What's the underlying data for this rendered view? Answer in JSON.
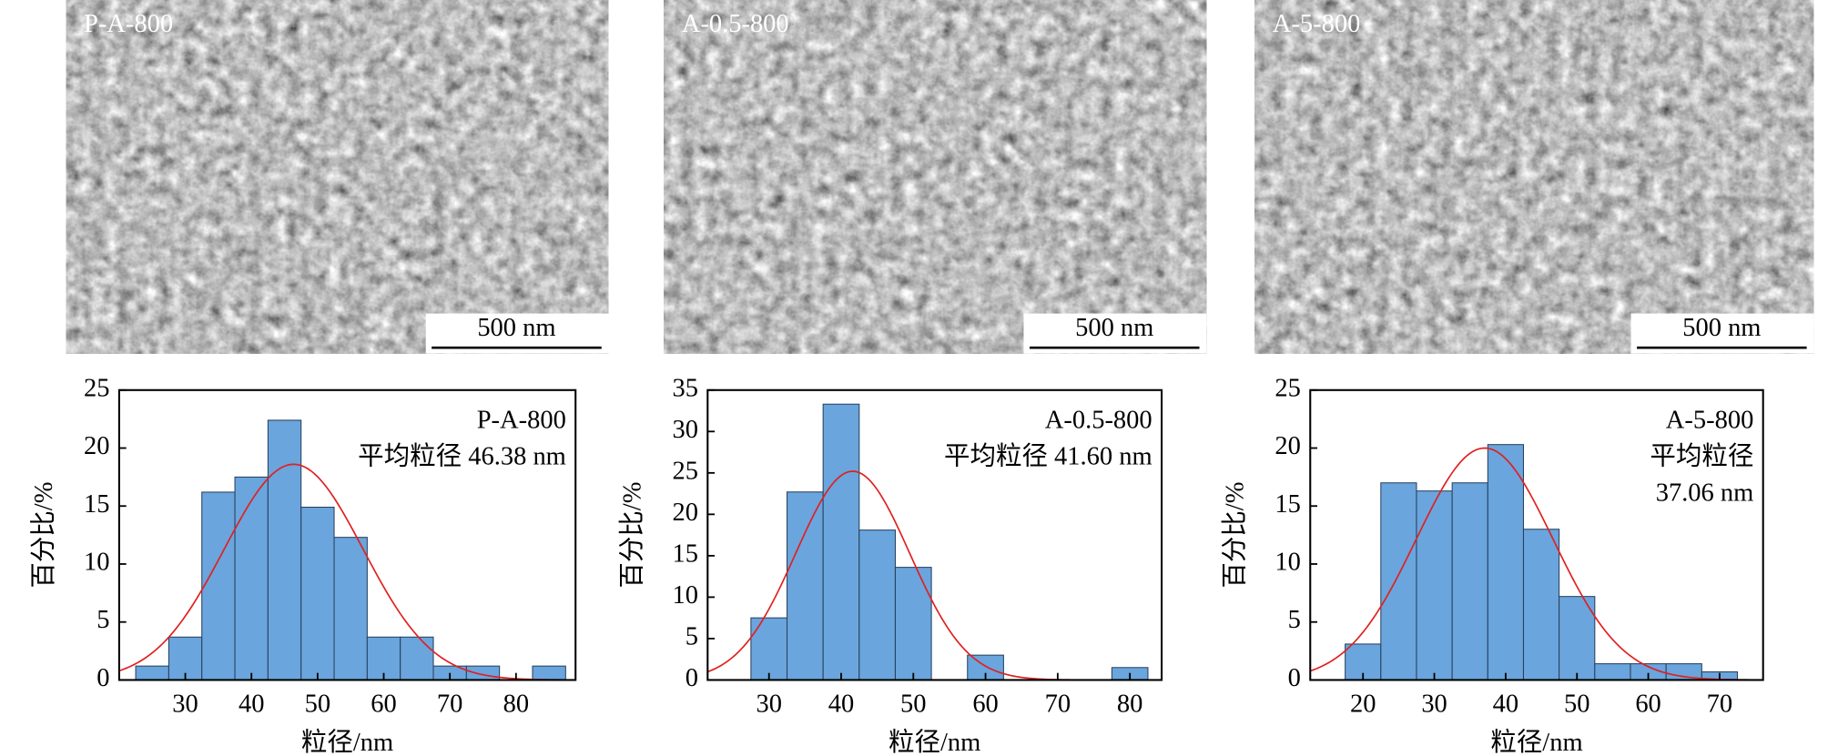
{
  "images": [
    {
      "label": "P-A-800",
      "scale_bar": "500 nm"
    },
    {
      "label": "A-0.5-800",
      "scale_bar": "500 nm"
    },
    {
      "label": "A-5-800",
      "scale_bar": "500 nm"
    }
  ],
  "chart_data": [
    {
      "type": "histogram",
      "annotation": [
        "P-A-800",
        "平均粒径 46.38 nm"
      ],
      "x_label": "粒径/nm",
      "y_label": "百分比/%",
      "color": "#6aa5dd",
      "fit_color": "#e02020",
      "bins": [
        22.5,
        27.5,
        32.5,
        37.5,
        42.5,
        47.5,
        52.5,
        57.5,
        62.5,
        67.5,
        72.5,
        77.5,
        82.5,
        87.5
      ],
      "values": [
        1.2,
        3.7,
        16.2,
        17.5,
        22.4,
        14.9,
        12.3,
        3.7,
        3.7,
        1.2,
        1.2,
        0,
        1.2
      ],
      "fit": {
        "mean": 46.38,
        "peak": 18.6,
        "sd": 10.5
      },
      "xlim": [
        20,
        89
      ],
      "ylim": [
        0,
        25
      ],
      "xticks": [
        30,
        40,
        50,
        60,
        70,
        80
      ],
      "yticks": [
        0,
        5,
        10,
        15,
        20,
        25
      ]
    },
    {
      "type": "histogram",
      "annotation": [
        "A-0.5-800",
        "平均粒径 41.60 nm"
      ],
      "x_label": "粒径/nm",
      "y_label": "百分比/%",
      "color": "#6aa5dd",
      "fit_color": "#e02020",
      "bins": [
        27.5,
        32.5,
        37.5,
        42.5,
        47.5,
        52.5,
        57.5,
        62.5,
        67.5,
        72.5,
        77.5,
        82.5
      ],
      "values": [
        7.5,
        22.7,
        33.3,
        18.1,
        13.6,
        0,
        3.0,
        0,
        0,
        0,
        1.5
      ],
      "fit": {
        "mean": 41.6,
        "peak": 25.2,
        "sd": 7.9
      },
      "xlim": [
        21.5,
        84.4
      ],
      "ylim": [
        0,
        35
      ],
      "xticks": [
        30,
        40,
        50,
        60,
        70,
        80
      ],
      "yticks": [
        0,
        5,
        10,
        15,
        20,
        25,
        30,
        35
      ]
    },
    {
      "type": "histogram",
      "annotation": [
        "A-5-800",
        "平均粒径",
        "37.06 nm"
      ],
      "x_label": "粒径/nm",
      "y_label": "百分比/%",
      "color": "#6aa5dd",
      "fit_color": "#e02020",
      "bins": [
        17.5,
        22.5,
        27.5,
        32.5,
        37.5,
        42.5,
        47.5,
        52.5,
        57.5,
        62.5,
        67.5,
        72.5
      ],
      "values": [
        3.1,
        17.0,
        16.3,
        17.0,
        20.3,
        13.0,
        7.2,
        1.4,
        1.4,
        1.4,
        0.7
      ],
      "fit": {
        "mean": 37.06,
        "peak": 20.0,
        "sd": 9.6
      },
      "xlim": [
        12.6,
        76.1
      ],
      "ylim": [
        0,
        25
      ],
      "xticks": [
        20,
        30,
        40,
        50,
        60,
        70
      ],
      "yticks": [
        0,
        5,
        10,
        15,
        20,
        25
      ]
    }
  ]
}
